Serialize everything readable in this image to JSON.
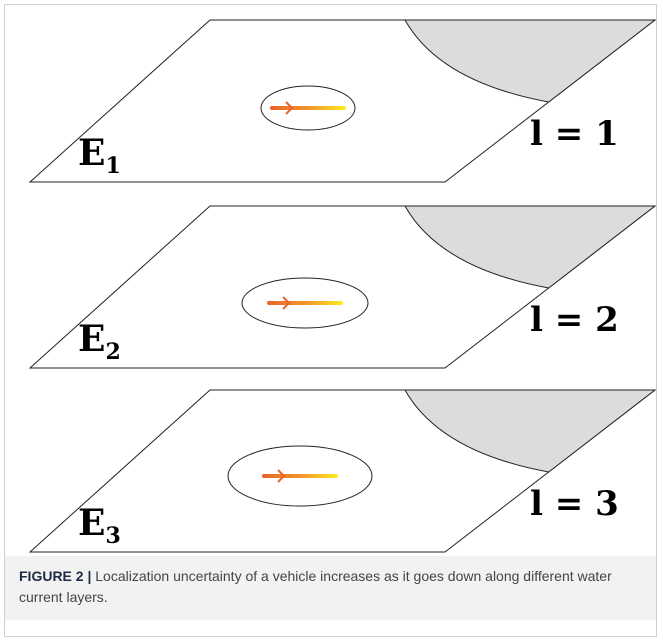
{
  "layers": [
    {
      "env": "E",
      "env_sub": "1",
      "layer_label": "l = 1"
    },
    {
      "env": "E",
      "env_sub": "2",
      "layer_label": "l = 2"
    },
    {
      "env": "E",
      "env_sub": "3",
      "layer_label": "l = 3"
    }
  ],
  "caption": {
    "label": "FIGURE 2 |",
    "text": "Localization uncertainty of a vehicle increases as it goes down along different water current layers."
  }
}
